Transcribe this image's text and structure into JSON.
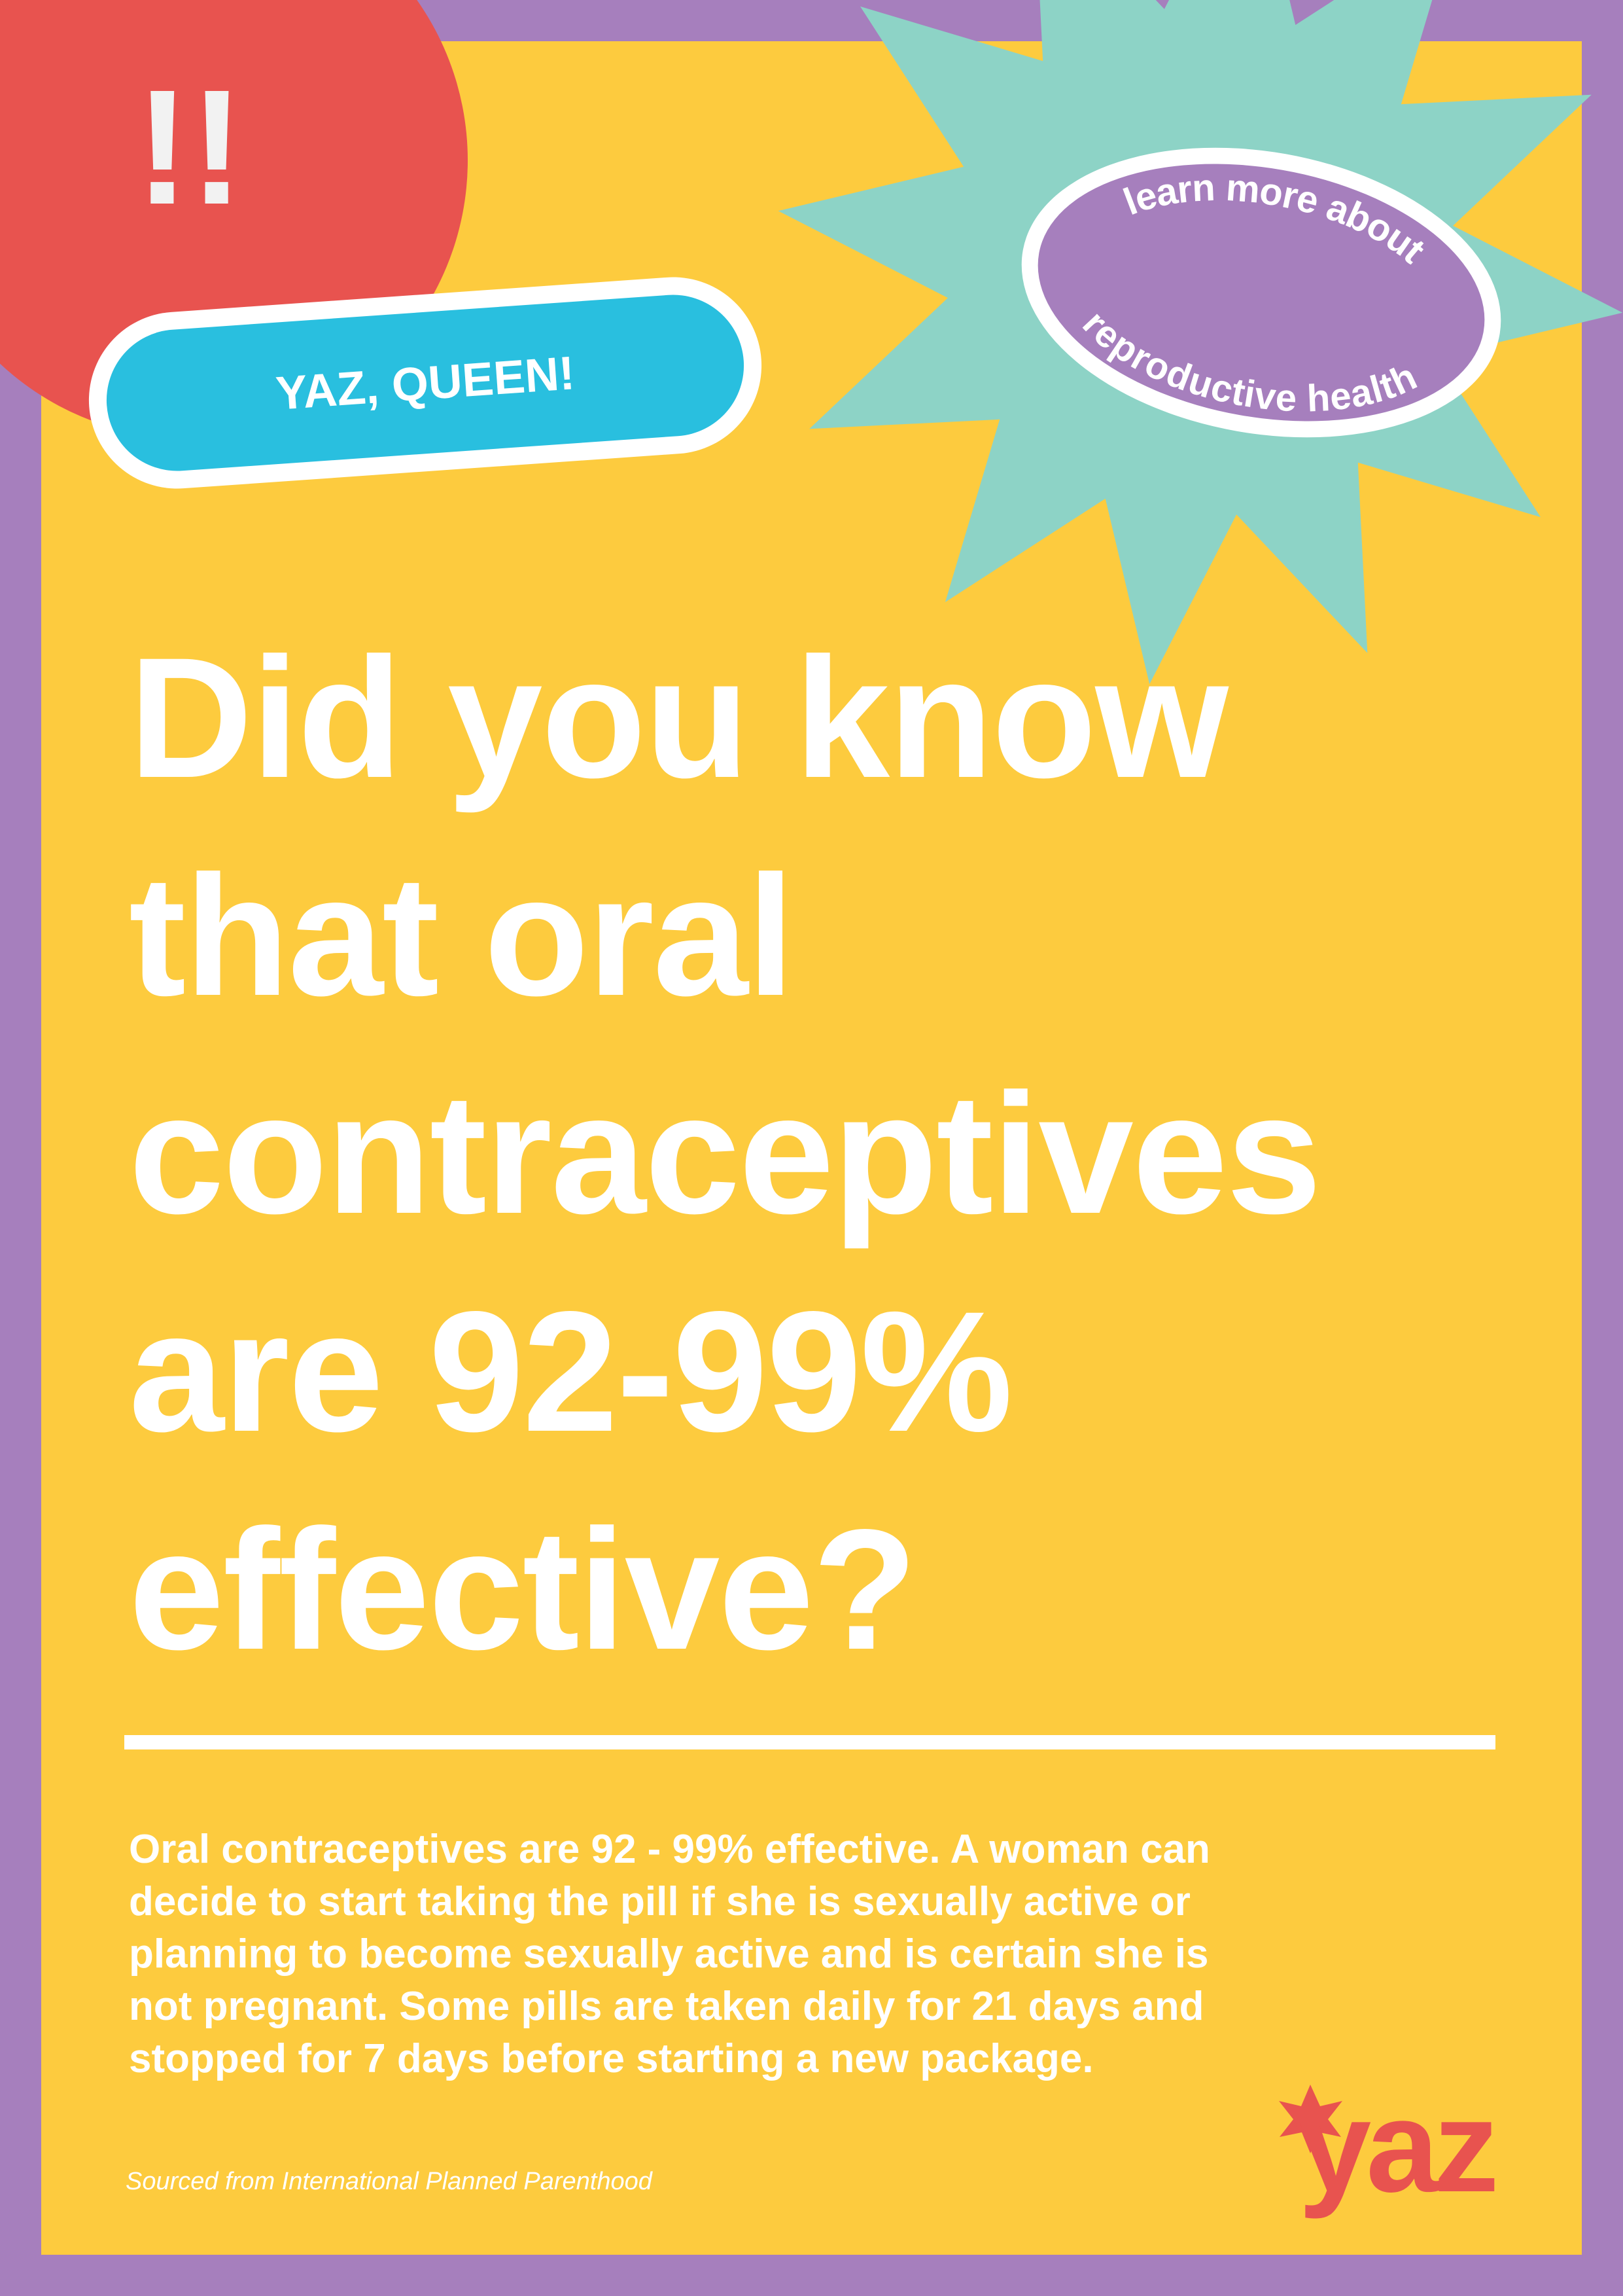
{
  "badge": "!!",
  "tag": "YAZ, QUEEN!",
  "sticker": {
    "top": "learn more about",
    "bottom": "reproductive health"
  },
  "headline": [
    "Did you know",
    "that oral",
    "contraceptives",
    "are 92-99%",
    "effective?"
  ],
  "body": [
    "Oral contraceptives are 92 - 99% effective. A woman can",
    "decide to start taking the pill if she is sexually active or",
    "planning to become sexually active and is certain she is",
    "not pregnant. Some pills are taken daily for 21 days and",
    "stopped for 7 days before starting a new package."
  ],
  "source": "Sourced from International Planned Parenthood",
  "logo": "yaz"
}
